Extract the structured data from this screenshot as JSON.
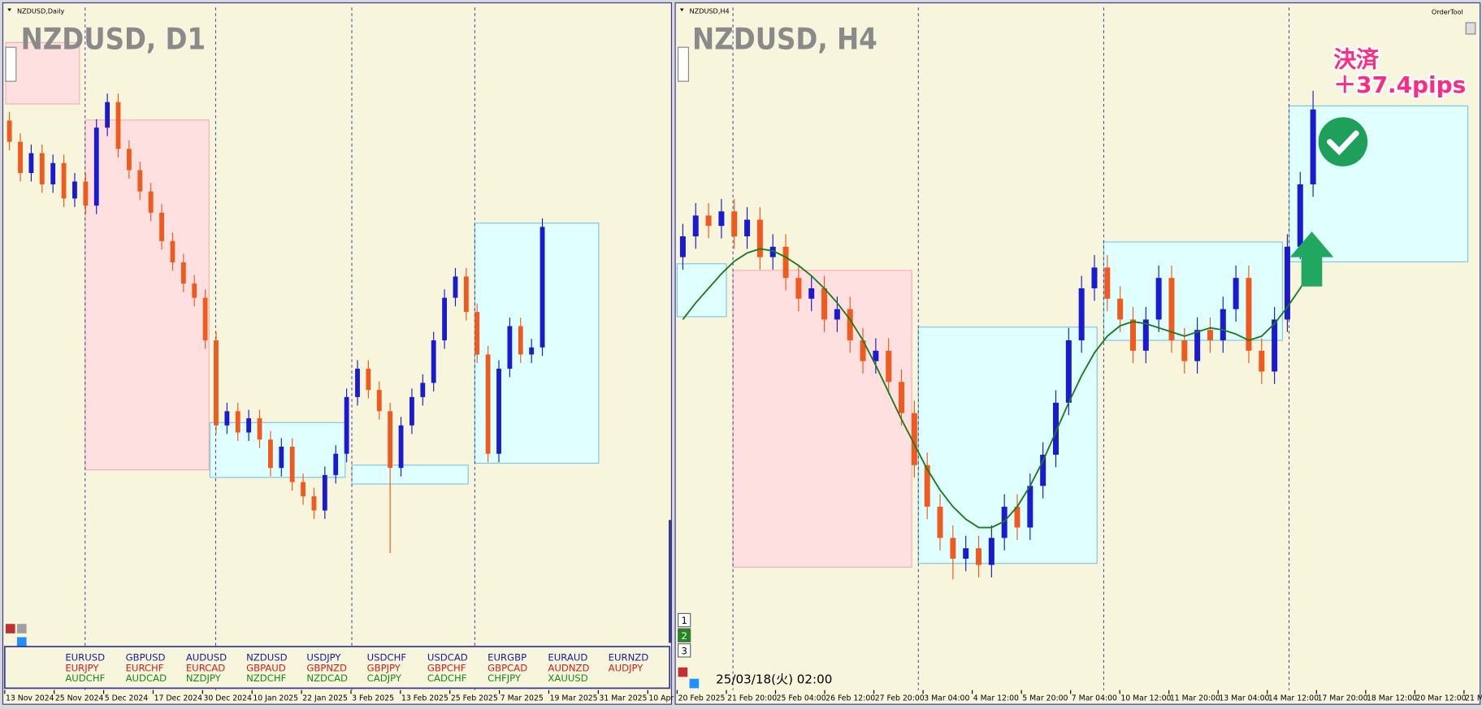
{
  "windows": [
    {
      "caption": "NZDUSD,Daily",
      "title": "NZDUSD, D1",
      "chart": {
        "type": "candlestick",
        "ylim": [
          0.548,
          0.592
        ],
        "candles": [
          [
            0.5855,
            0.5861,
            0.5834,
            0.584
          ],
          [
            0.584,
            0.5846,
            0.5812,
            0.5818
          ],
          [
            0.5818,
            0.5838,
            0.5812,
            0.5832
          ],
          [
            0.5832,
            0.5838,
            0.5804,
            0.581
          ],
          [
            0.581,
            0.5831,
            0.5804,
            0.5825
          ],
          [
            0.5825,
            0.5831,
            0.5794,
            0.58
          ],
          [
            0.58,
            0.5818,
            0.5794,
            0.5812
          ],
          [
            0.5812,
            0.5818,
            0.5789,
            0.5795
          ],
          [
            0.5795,
            0.5856,
            0.5789,
            0.585
          ],
          [
            0.585,
            0.5874,
            0.5844,
            0.5868
          ],
          [
            0.5868,
            0.5874,
            0.5829,
            0.5835
          ],
          [
            0.5835,
            0.5841,
            0.5814,
            0.582
          ],
          [
            0.582,
            0.5826,
            0.5799,
            0.5805
          ],
          [
            0.5805,
            0.5811,
            0.5784,
            0.579
          ],
          [
            0.579,
            0.5796,
            0.5764,
            0.577
          ],
          [
            0.577,
            0.5776,
            0.5749,
            0.5755
          ],
          [
            0.5755,
            0.5761,
            0.5734,
            0.574
          ],
          [
            0.574,
            0.5746,
            0.5724,
            0.573
          ],
          [
            0.573,
            0.5736,
            0.5694,
            0.57
          ],
          [
            0.57,
            0.5706,
            0.5634,
            0.564
          ],
          [
            0.564,
            0.5656,
            0.5634,
            0.565
          ],
          [
            0.565,
            0.5656,
            0.5629,
            0.5635
          ],
          [
            0.5635,
            0.5651,
            0.5629,
            0.5645
          ],
          [
            0.5645,
            0.5651,
            0.5624,
            0.563
          ],
          [
            0.563,
            0.5636,
            0.5604,
            0.561
          ],
          [
            0.561,
            0.5631,
            0.5604,
            0.5625
          ],
          [
            0.5625,
            0.5631,
            0.5594,
            0.56
          ],
          [
            0.56,
            0.5606,
            0.5584,
            0.559
          ],
          [
            0.559,
            0.5596,
            0.5574,
            0.558
          ],
          [
            0.558,
            0.5611,
            0.5574,
            0.5605
          ],
          [
            0.5605,
            0.5626,
            0.5599,
            0.562
          ],
          [
            0.562,
            0.5666,
            0.5614,
            0.566
          ],
          [
            0.566,
            0.5686,
            0.5654,
            0.568
          ],
          [
            0.568,
            0.5686,
            0.5659,
            0.5665
          ],
          [
            0.5665,
            0.5671,
            0.5644,
            0.565
          ],
          [
            0.565,
            0.5656,
            0.555,
            0.561
          ],
          [
            0.561,
            0.5646,
            0.5604,
            0.564
          ],
          [
            0.564,
            0.5666,
            0.5634,
            0.566
          ],
          [
            0.566,
            0.5676,
            0.5654,
            0.567
          ],
          [
            0.567,
            0.5706,
            0.5664,
            0.57
          ],
          [
            0.57,
            0.5736,
            0.5694,
            0.573
          ],
          [
            0.573,
            0.5751,
            0.5724,
            0.5745
          ],
          [
            0.5745,
            0.5751,
            0.5714,
            0.572
          ],
          [
            0.572,
            0.5726,
            0.5684,
            0.569
          ],
          [
            0.569,
            0.5696,
            0.5614,
            0.562
          ],
          [
            0.562,
            0.5686,
            0.5614,
            0.568
          ],
          [
            0.568,
            0.5716,
            0.5674,
            0.571
          ],
          [
            0.571,
            0.5716,
            0.5684,
            0.569
          ],
          [
            0.569,
            0.5701,
            0.5684,
            0.5695
          ],
          [
            0.5695,
            0.5786,
            0.5689,
            0.578
          ]
        ]
      },
      "xticks": [
        "13 Nov 2024",
        "25 Nov 2024",
        "5 Dec 2024",
        "17 Dec 2024",
        "30 Dec 2024",
        "10 Jan 2025",
        "22 Jan 2025",
        "3 Feb 2025",
        "13 Feb 2025",
        "25 Feb 2025",
        "7 Mar 2025",
        "19 Mar 2025",
        "31 Mar 2025",
        "10 Apr"
      ],
      "symbols": [
        [
          "EURUSD",
          "EURJPY",
          "AUDCHF"
        ],
        [
          "GBPUSD",
          "EURCHF",
          "AUDCAD"
        ],
        [
          "AUDUSD",
          "EURCAD",
          "NZDJPY"
        ],
        [
          "NZDUSD",
          "GBPAUD",
          "NZDCHF"
        ],
        [
          "USDJPY",
          "GBPNZD",
          "NZDCAD"
        ],
        [
          "USDCHF",
          "GBPJPY",
          "CADJPY"
        ],
        [
          "USDCAD",
          "GBPCHF",
          "CADCHF"
        ],
        [
          "EURGBP",
          "GBPCAD",
          "CHFJPY"
        ],
        [
          "EURAUD",
          "AUDNZD",
          "XAUUSD"
        ],
        [
          "EURNZD",
          "AUDJPY"
        ]
      ]
    },
    {
      "caption": "NZDUSD,H4",
      "title": "NZDUSD, H4",
      "tool": "OrderTool",
      "annotation": [
        "決済",
        "＋37.4pips"
      ],
      "timestamp": "25/03/18(火) 02:00",
      "buttons": [
        "1",
        "2",
        "3"
      ],
      "chart": {
        "type": "candlestick",
        "ylim": [
          0.553,
          0.583
        ],
        "candles": [
          [
            0.572,
            0.5736,
            0.5714,
            0.573
          ],
          [
            0.573,
            0.5746,
            0.5724,
            0.574
          ],
          [
            0.574,
            0.5746,
            0.5729,
            0.5735
          ],
          [
            0.5735,
            0.5748,
            0.5729,
            0.5742
          ],
          [
            0.5742,
            0.5748,
            0.5724,
            0.573
          ],
          [
            0.573,
            0.5744,
            0.5724,
            0.5738
          ],
          [
            0.5738,
            0.5744,
            0.5714,
            0.572
          ],
          [
            0.572,
            0.5731,
            0.5714,
            0.5725
          ],
          [
            0.5725,
            0.5731,
            0.5704,
            0.571
          ],
          [
            0.571,
            0.5716,
            0.5694,
            0.57
          ],
          [
            0.57,
            0.5711,
            0.5694,
            0.5705
          ],
          [
            0.5705,
            0.5711,
            0.5684,
            0.569
          ],
          [
            0.569,
            0.5701,
            0.5684,
            0.5695
          ],
          [
            0.5695,
            0.5701,
            0.5674,
            0.568
          ],
          [
            0.568,
            0.5686,
            0.5664,
            0.567
          ],
          [
            0.567,
            0.5681,
            0.5664,
            0.5675
          ],
          [
            0.5675,
            0.5681,
            0.5654,
            0.566
          ],
          [
            0.566,
            0.5666,
            0.5639,
            0.5645
          ],
          [
            0.5645,
            0.5651,
            0.5614,
            0.562
          ],
          [
            0.562,
            0.5626,
            0.5594,
            0.56
          ],
          [
            0.56,
            0.5606,
            0.5579,
            0.5585
          ],
          [
            0.5585,
            0.5591,
            0.5565,
            0.5575
          ],
          [
            0.5575,
            0.5586,
            0.5569,
            0.558
          ],
          [
            0.558,
            0.5586,
            0.5566,
            0.5572
          ],
          [
            0.5572,
            0.5591,
            0.5566,
            0.5585
          ],
          [
            0.5585,
            0.5606,
            0.5579,
            0.56
          ],
          [
            0.56,
            0.5606,
            0.5584,
            0.559
          ],
          [
            0.559,
            0.5616,
            0.5584,
            0.561
          ],
          [
            0.561,
            0.5631,
            0.5604,
            0.5625
          ],
          [
            0.5625,
            0.5656,
            0.5619,
            0.565
          ],
          [
            0.565,
            0.5686,
            0.5644,
            0.568
          ],
          [
            0.568,
            0.5711,
            0.5674,
            0.5705
          ],
          [
            0.5705,
            0.5721,
            0.5699,
            0.5715
          ],
          [
            0.5715,
            0.5721,
            0.5694,
            0.57
          ],
          [
            0.57,
            0.5706,
            0.5684,
            0.569
          ],
          [
            0.569,
            0.5696,
            0.5669,
            0.5675
          ],
          [
            0.5675,
            0.5696,
            0.5669,
            0.569
          ],
          [
            0.569,
            0.5716,
            0.5684,
            0.571
          ],
          [
            0.571,
            0.5716,
            0.5674,
            0.568
          ],
          [
            0.568,
            0.5686,
            0.5664,
            0.567
          ],
          [
            0.567,
            0.5691,
            0.5664,
            0.5685
          ],
          [
            0.5685,
            0.5691,
            0.5674,
            0.568
          ],
          [
            0.568,
            0.5701,
            0.5674,
            0.5695
          ],
          [
            0.5695,
            0.5716,
            0.5689,
            0.571
          ],
          [
            0.571,
            0.5716,
            0.5669,
            0.5675
          ],
          [
            0.5675,
            0.5681,
            0.5659,
            0.5665
          ],
          [
            0.5665,
            0.5696,
            0.5659,
            0.569
          ],
          [
            0.569,
            0.5731,
            0.5684,
            0.5725
          ],
          [
            0.5725,
            0.5761,
            0.5719,
            0.5755
          ],
          [
            0.5755,
            0.58,
            0.5749,
            0.5791
          ]
        ],
        "ma": [
          0.569,
          0.5698,
          0.5705,
          0.5712,
          0.5718,
          0.5722,
          0.5724,
          0.5723,
          0.572,
          0.5716,
          0.5711,
          0.5705,
          0.5698,
          0.569,
          0.568,
          0.5668,
          0.5655,
          0.5642,
          0.563,
          0.5618,
          0.5608,
          0.56,
          0.5594,
          0.559,
          0.559,
          0.5593,
          0.56,
          0.561,
          0.5622,
          0.5636,
          0.565,
          0.5663,
          0.5674,
          0.5682,
          0.5687,
          0.5689,
          0.5688,
          0.5686,
          0.5684,
          0.5682,
          0.5684,
          0.5686,
          0.5685,
          0.5683,
          0.568,
          0.5682,
          0.5688,
          0.5696,
          0.5705,
          0.5715
        ],
        "ma_color": "#1e7a1e"
      },
      "xticks": [
        "20 Feb 2025",
        "21 Feb 20:00",
        "25 Feb 04:00",
        "26 Feb 12:00",
        "27 Feb 20:00",
        "3 Mar 04:00",
        "4 Mar 12:00",
        "5 Mar 20:00",
        "7 Mar 04:00",
        "10 Mar 12:00",
        "11 Mar 20:00",
        "13 Mar 04:00",
        "14 Mar 12:00",
        "17 Mar 20:00",
        "18 Mar 12:00",
        "20 Mar 12:00",
        "21 M"
      ]
    }
  ]
}
